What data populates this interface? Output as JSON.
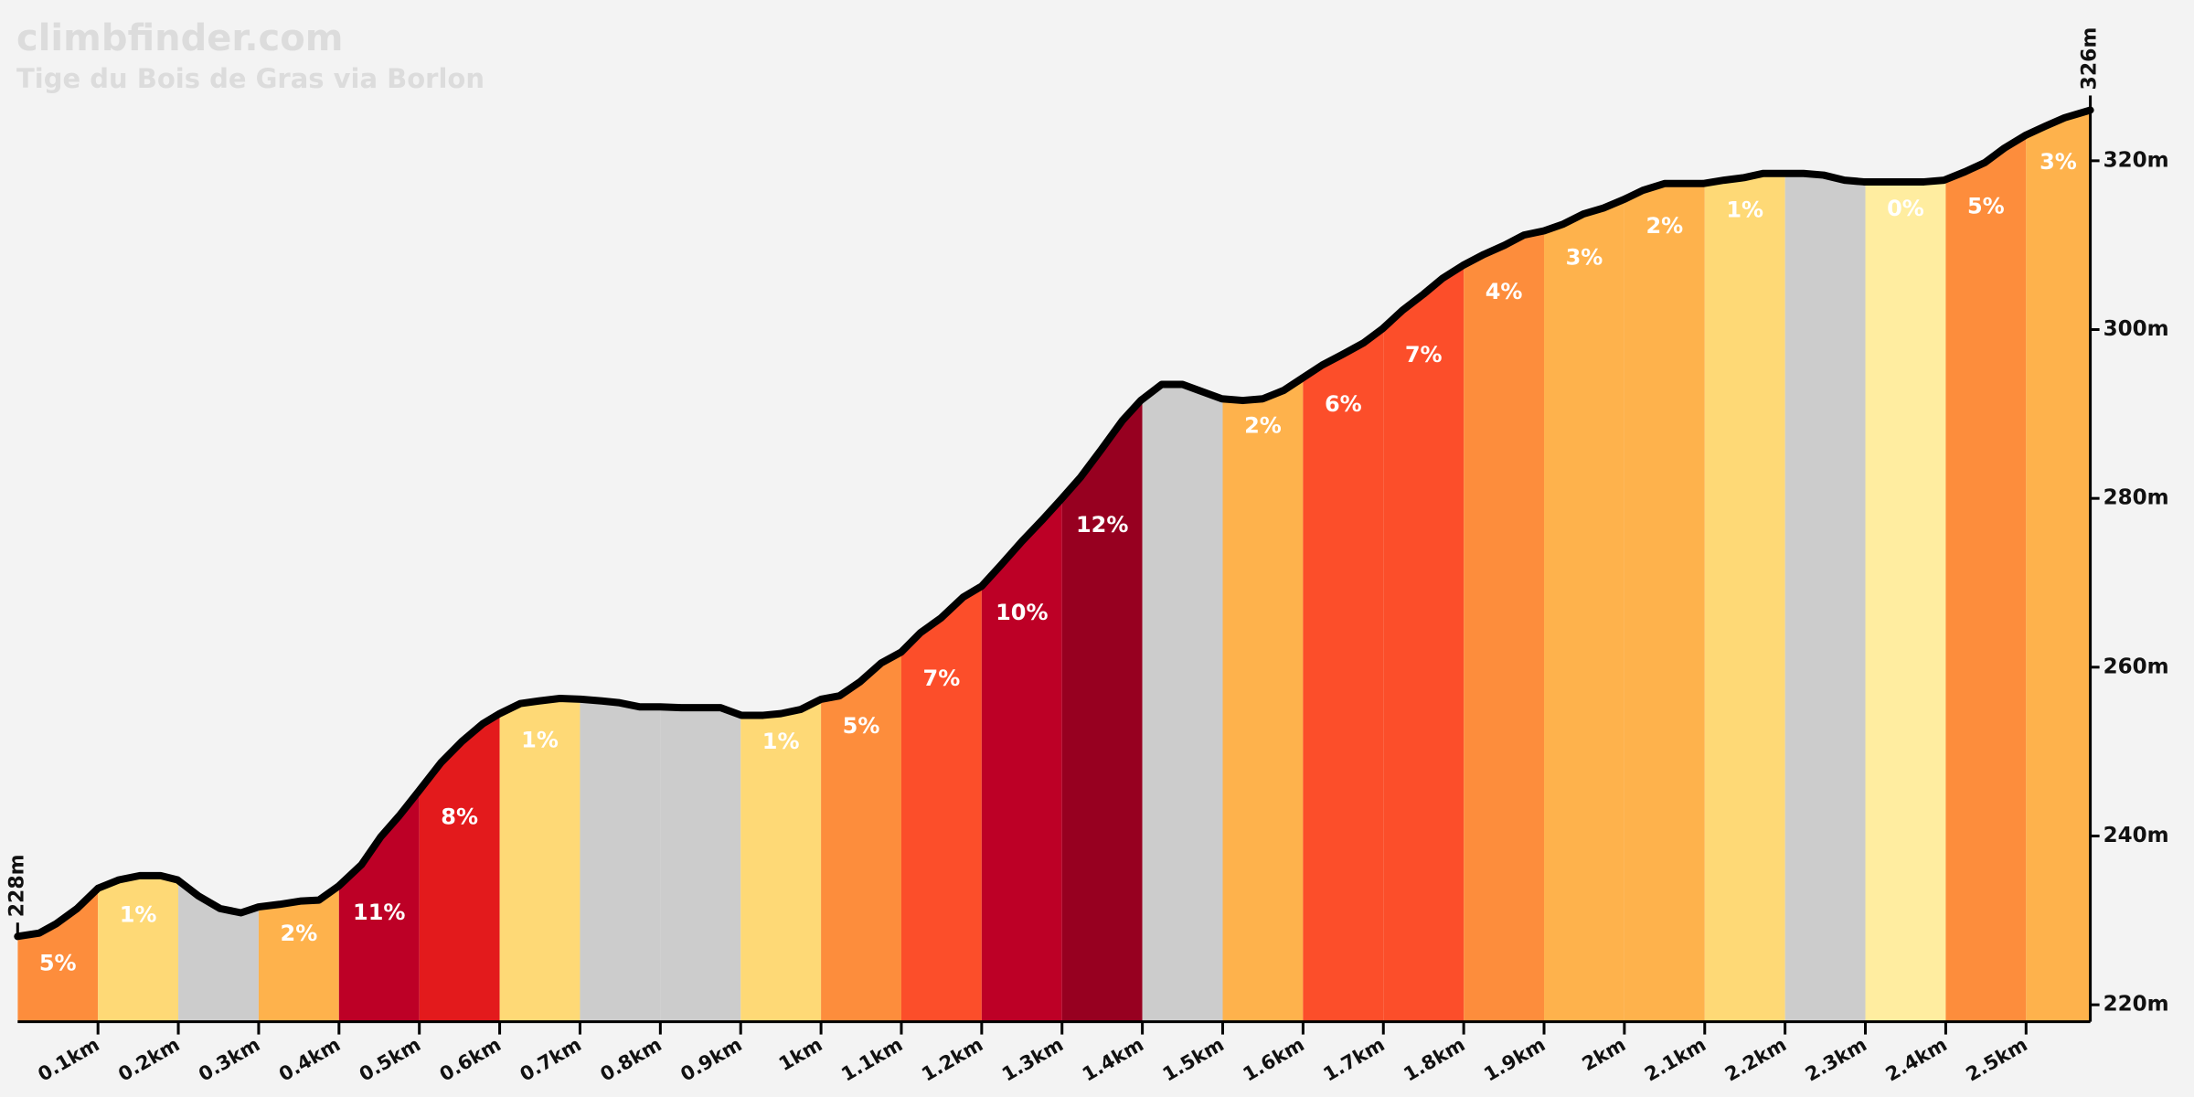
{
  "chart_data": {
    "type": "elevation",
    "title": "climbfinder.com",
    "subtitle": "Tige du Bois de Gras via Borlon",
    "xlim": [
      0,
      2.58
    ],
    "ylim": [
      218,
      328
    ],
    "xticks": [
      {
        "value": 0.1,
        "label": "0.1km"
      },
      {
        "value": 0.2,
        "label": "0.2km"
      },
      {
        "value": 0.3,
        "label": "0.3km"
      },
      {
        "value": 0.4,
        "label": "0.4km"
      },
      {
        "value": 0.5,
        "label": "0.5km"
      },
      {
        "value": 0.6,
        "label": "0.6km"
      },
      {
        "value": 0.7,
        "label": "0.7km"
      },
      {
        "value": 0.8,
        "label": "0.8km"
      },
      {
        "value": 0.9,
        "label": "0.9km"
      },
      {
        "value": 1,
        "label": "1km"
      },
      {
        "value": 1.1,
        "label": "1.1km"
      },
      {
        "value": 1.2,
        "label": "1.2km"
      },
      {
        "value": 1.3,
        "label": "1.3km"
      },
      {
        "value": 1.4,
        "label": "1.4km"
      },
      {
        "value": 1.5,
        "label": "1.5km"
      },
      {
        "value": 1.6,
        "label": "1.6km"
      },
      {
        "value": 1.7,
        "label": "1.7km"
      },
      {
        "value": 1.8,
        "label": "1.8km"
      },
      {
        "value": 1.9,
        "label": "1.9km"
      },
      {
        "value": 2,
        "label": "2km"
      },
      {
        "value": 2.1,
        "label": "2.1km"
      },
      {
        "value": 2.2,
        "label": "2.2km"
      },
      {
        "value": 2.3,
        "label": "2.3km"
      },
      {
        "value": 2.4,
        "label": "2.4km"
      },
      {
        "value": 2.5,
        "label": "2.5km"
      }
    ],
    "yticks": [
      {
        "value": 220,
        "label": "220m"
      },
      {
        "value": 240,
        "label": "240m"
      },
      {
        "value": 260,
        "label": "260m"
      },
      {
        "value": 280,
        "label": "280m"
      },
      {
        "value": 300,
        "label": "300m"
      },
      {
        "value": 320,
        "label": "320m"
      }
    ],
    "start_elevation": {
      "value": 228,
      "label": "228m"
    },
    "end_elevation": {
      "value": 326,
      "label": "326m"
    },
    "line_color": "#000000",
    "profile": {
      "x": [
        0,
        0.027,
        0.048,
        0.074,
        0.1,
        0.126,
        0.152,
        0.178,
        0.199,
        0.225,
        0.252,
        0.278,
        0.3,
        0.326,
        0.353,
        0.375,
        0.4,
        0.428,
        0.452,
        0.475,
        0.5,
        0.527,
        0.553,
        0.579,
        0.6,
        0.626,
        0.649,
        0.675,
        0.701,
        0.727,
        0.748,
        0.774,
        0.8,
        0.826,
        0.849,
        0.875,
        0.901,
        0.928,
        0.95,
        0.975,
        1.0,
        1.023,
        1.049,
        1.075,
        1.1,
        1.124,
        1.149,
        1.177,
        1.2,
        1.224,
        1.25,
        1.276,
        1.299,
        1.323,
        1.349,
        1.375,
        1.398,
        1.424,
        1.45,
        1.476,
        1.499,
        1.525,
        1.55,
        1.576,
        1.6,
        1.624,
        1.65,
        1.675,
        1.699,
        1.724,
        1.75,
        1.774,
        1.799,
        1.825,
        1.851,
        1.875,
        1.9,
        1.924,
        1.949,
        1.974,
        1.999,
        2.023,
        2.05,
        2.074,
        2.098,
        2.124,
        2.149,
        2.173,
        2.199,
        2.223,
        2.248,
        2.274,
        2.298,
        2.323,
        2.349,
        2.373,
        2.398,
        2.424,
        2.449,
        2.473,
        2.499,
        2.524,
        2.548,
        2.58
      ],
      "y": [
        228.1,
        228.5,
        229.6,
        231.4,
        233.8,
        234.8,
        235.3,
        235.3,
        234.8,
        232.9,
        231.4,
        230.9,
        231.6,
        231.9,
        232.3,
        232.4,
        234.1,
        236.6,
        239.9,
        242.4,
        245.4,
        248.7,
        251.2,
        253.3,
        254.5,
        255.7,
        256.0,
        256.3,
        256.2,
        256.0,
        255.8,
        255.3,
        255.3,
        255.2,
        255.2,
        255.2,
        254.3,
        254.3,
        254.5,
        255.0,
        256.2,
        256.6,
        258.3,
        260.5,
        261.8,
        264.1,
        265.8,
        268.3,
        269.6,
        272.1,
        274.9,
        277.5,
        279.9,
        282.5,
        285.8,
        289.2,
        291.6,
        293.5,
        293.5,
        292.6,
        291.8,
        291.6,
        291.8,
        292.8,
        294.3,
        295.8,
        297.1,
        298.4,
        300.1,
        302.3,
        304.2,
        306.1,
        307.6,
        308.9,
        310.0,
        311.2,
        311.7,
        312.5,
        313.7,
        314.4,
        315.4,
        316.5,
        317.3,
        317.3,
        317.3,
        317.7,
        318.0,
        318.5,
        318.5,
        318.5,
        318.3,
        317.7,
        317.5,
        317.5,
        317.5,
        317.5,
        317.7,
        318.7,
        319.8,
        321.5,
        323.0,
        324.1,
        325.1,
        326.0
      ]
    },
    "segments": {
      "bins": [
        0,
        0.1,
        0.2,
        0.3,
        0.4,
        0.5,
        0.6,
        0.7,
        0.8,
        0.9,
        1.0,
        1.1,
        1.2,
        1.3,
        1.4,
        1.5,
        1.6,
        1.7,
        1.8,
        1.9,
        2.0,
        2.1,
        2.2,
        2.3,
        2.4,
        2.5,
        2.58
      ],
      "colors": [
        "#fd8d3c",
        "#fed976",
        "#cccccc",
        "#feb24c",
        "#bd0026",
        "#e31a1c",
        "#fed976",
        "#cccccc",
        "#cccccc",
        "#fed976",
        "#fd8d3c",
        "#fc4e2a",
        "#bd0026",
        "#970020",
        "#cccccc",
        "#feb24c",
        "#fc4e2a",
        "#fc4e2a",
        "#fd8d3c",
        "#feb24c",
        "#feb24c",
        "#fed976",
        "#cccccc",
        "#ffeda0",
        "#fd8d3c",
        "#feb24c"
      ],
      "grades": [
        5,
        1,
        null,
        2,
        11,
        8,
        1,
        null,
        null,
        1,
        5,
        7,
        10,
        12,
        null,
        2,
        6,
        7,
        4,
        3,
        2,
        1,
        null,
        0,
        5,
        3
      ],
      "grade_labels": [
        "5%",
        "1%",
        null,
        "2%",
        "11%",
        "8%",
        "1%",
        null,
        null,
        "1%",
        "5%",
        "7%",
        "10%",
        "12%",
        null,
        "2%",
        "6%",
        "7%",
        "4%",
        "3%",
        "2%",
        "1%",
        null,
        "0%",
        "5%",
        "3%"
      ]
    }
  }
}
